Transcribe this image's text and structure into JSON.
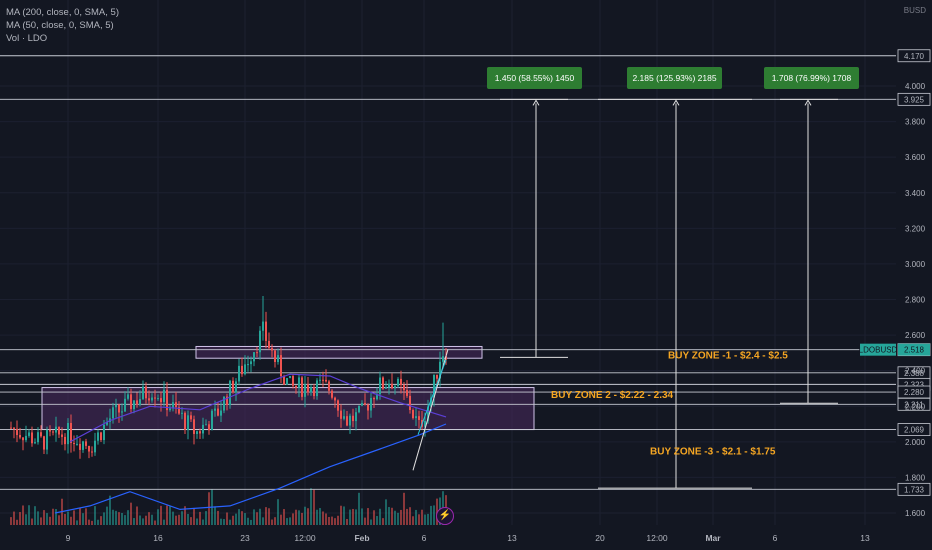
{
  "legend": {
    "ma200": "MA (200, close, 0, SMA, 5)",
    "ma50": "MA (50, close, 0, SMA, 5)",
    "vol": "Vol · LDO"
  },
  "currency": "BUSD",
  "symbol_tag": "LDOBUSD",
  "flash_icon": "lightning-icon",
  "colors": {
    "background": "#131722",
    "up": "#26a69a",
    "down": "#ef5350",
    "ma200": "#2962ff",
    "ma50": "#5b3fd6",
    "zone_fill": "#4a2a5e",
    "measure_box": "#2e7d32",
    "buy_zone_text": "#f5a623"
  },
  "chart_data": {
    "type": "candlestick",
    "symbol": "LDOBUSD",
    "y_axis": {
      "ticks": [
        1.6,
        1.8,
        2.0,
        2.2,
        2.4,
        2.6,
        2.8,
        3.0,
        3.2,
        3.4,
        3.6,
        3.8,
        4.0
      ],
      "tick_labels": [
        "1.600",
        "1.800",
        "2.000",
        "2.200",
        "2.400",
        "2.600",
        "2.800",
        "3.000",
        "3.200",
        "3.400",
        "3.600",
        "3.800",
        "4.000"
      ],
      "ylim": [
        1.54,
        4.3
      ]
    },
    "x_axis": {
      "tick_labels": [
        "9",
        "16",
        "23",
        "12:00",
        "Feb",
        "6",
        "13",
        "20",
        "12:00",
        "Mar",
        "6",
        "13"
      ],
      "bold_labels": [
        "Feb",
        "Mar"
      ]
    },
    "price_levels": [
      {
        "label": "4.170",
        "value": 4.17
      },
      {
        "label": "3.925",
        "value": 3.925
      },
      {
        "label": "2.518",
        "value": 2.518
      },
      {
        "label": "2.388",
        "value": 2.388
      },
      {
        "label": "2.323",
        "value": 2.323
      },
      {
        "label": "2.280",
        "value": 2.28
      },
      {
        "label": "2.211",
        "value": 2.211
      },
      {
        "label": "2.069",
        "value": 2.069
      },
      {
        "label": "1.733",
        "value": 1.733
      }
    ],
    "current_price": {
      "label": "2.518",
      "value": 2.518
    },
    "zones": [
      {
        "name": "upper-box",
        "low": 2.47,
        "high": 2.536
      },
      {
        "name": "lower-box",
        "low": 2.069,
        "high": 2.305
      }
    ],
    "annotations": [
      {
        "text": "BUY ZONE -1 - $2.4 - $2.5",
        "y": 2.49
      },
      {
        "text": "BUY ZONE 2 - $2.22 - 2.34",
        "y": 2.27
      },
      {
        "text": "BUY ZONE -3 - $2.1 - $1.75",
        "y": 1.95
      }
    ],
    "measures": [
      {
        "label": "1.450 (58.55%) 1450",
        "from": 2.475,
        "to": 3.925
      },
      {
        "label": "2.185 (125.93%) 2185",
        "from": 1.74,
        "to": 3.925
      },
      {
        "label": "1.708 (76.99%) 1708",
        "from": 2.217,
        "to": 3.925
      }
    ]
  }
}
